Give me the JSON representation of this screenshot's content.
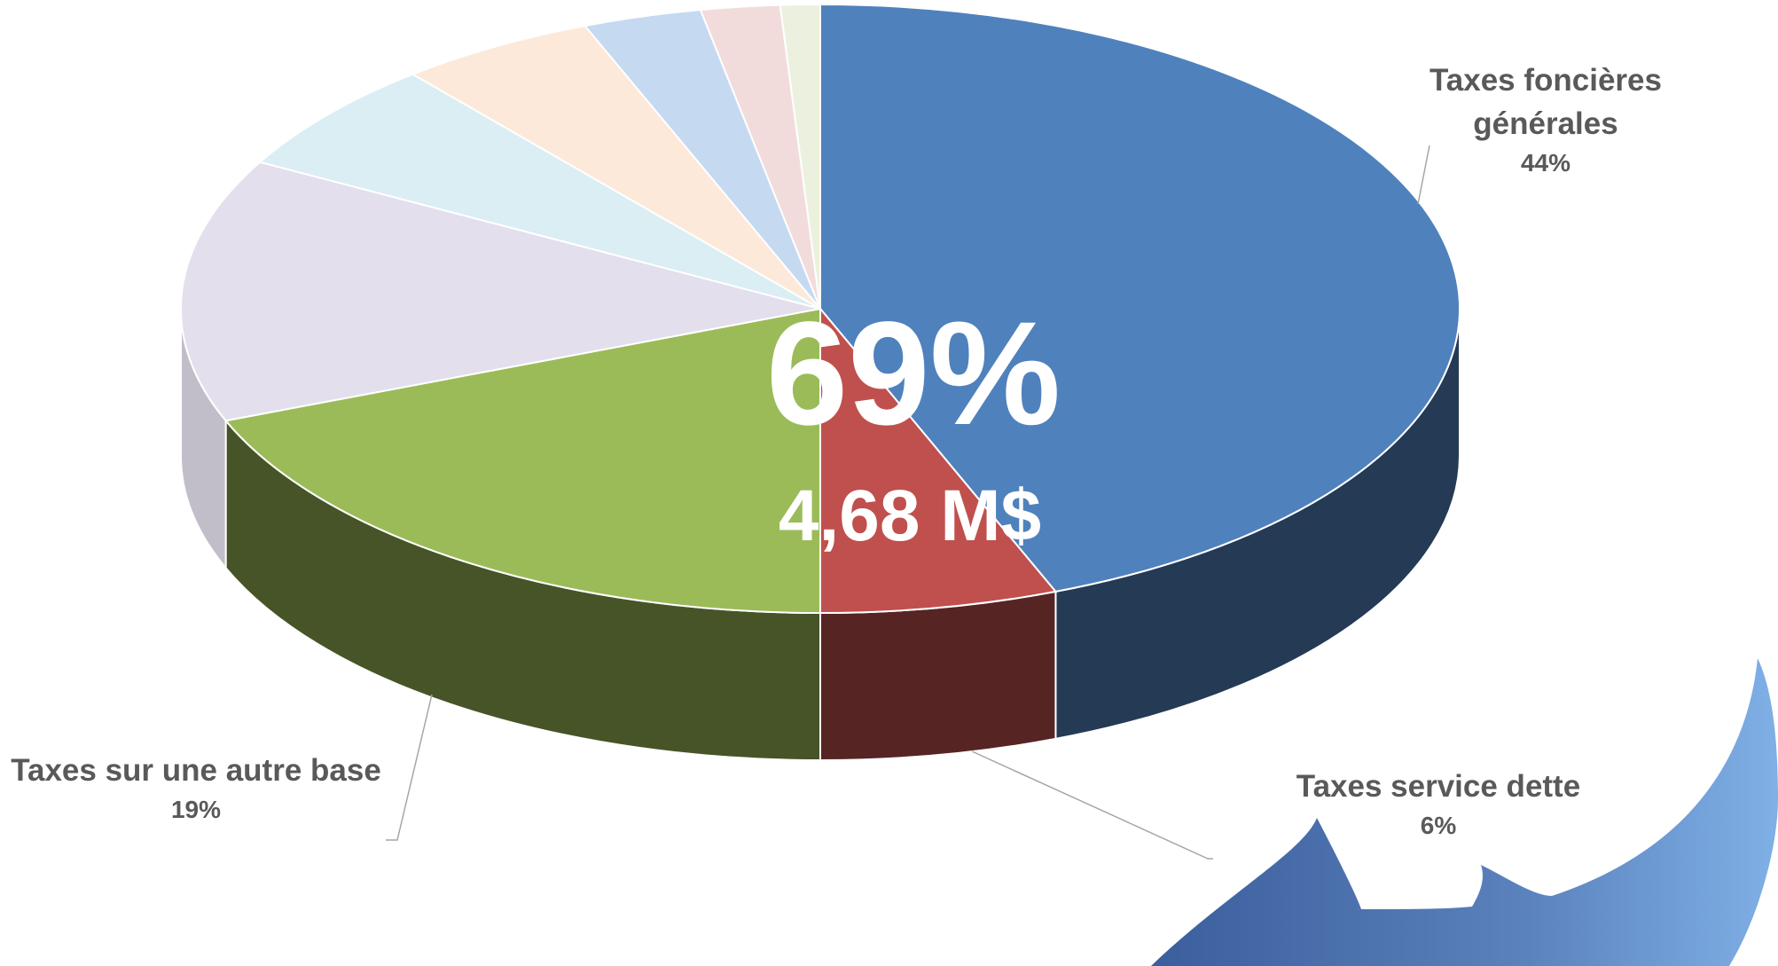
{
  "chart_data": {
    "type": "pie",
    "categories": [
      "Taxes foncières générales",
      "Taxes service dette",
      "Taxes sur une autre base",
      null,
      null,
      null,
      null,
      null,
      null
    ],
    "values": [
      44,
      6,
      19,
      14,
      6,
      5,
      3,
      2,
      1
    ],
    "value_labels": [
      "44%",
      "6%",
      "19%",
      null,
      null,
      null,
      null,
      null,
      null
    ],
    "colors": [
      "#4f81bd",
      "#c0504d",
      "#9bbb59",
      "#e4dfec",
      "#daeef3",
      "#fde9d9",
      "#c5d9f1",
      "#f2dcdb",
      "#ebf1de"
    ],
    "annotations": [
      "69%",
      "4,68 M$"
    ]
  }
}
